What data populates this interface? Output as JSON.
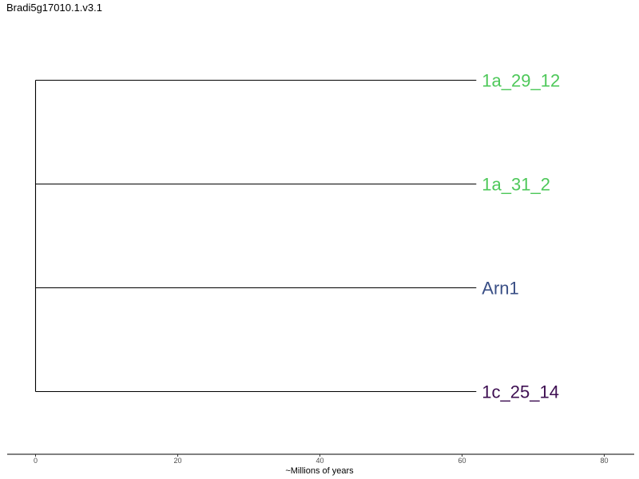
{
  "chart_data": {
    "type": "dendrogram",
    "title": "Bradi5g17010.1.v3.1",
    "xlabel": "~Millions of years",
    "xlim": [
      -4,
      84
    ],
    "x_ticks": [
      0,
      20,
      40,
      60,
      80
    ],
    "x_tick_labels": [
      "0",
      "20",
      "40",
      "60",
      "80"
    ],
    "root_x": 0,
    "internal_nodes": [
      {
        "x": 0,
        "children": [
          0,
          1,
          2,
          3
        ]
      }
    ],
    "tips": [
      {
        "label": "1a_29_12",
        "order": 1,
        "x": 62,
        "color": "#4ec85a"
      },
      {
        "label": "1a_31_2",
        "order": 2,
        "x": 62,
        "color": "#4ec85a"
      },
      {
        "label": "Arn1",
        "order": 3,
        "x": 62,
        "color": "#3a4f86"
      },
      {
        "label": "1c_25_14",
        "order": 4,
        "x": 62,
        "color": "#3e0f52"
      }
    ]
  }
}
